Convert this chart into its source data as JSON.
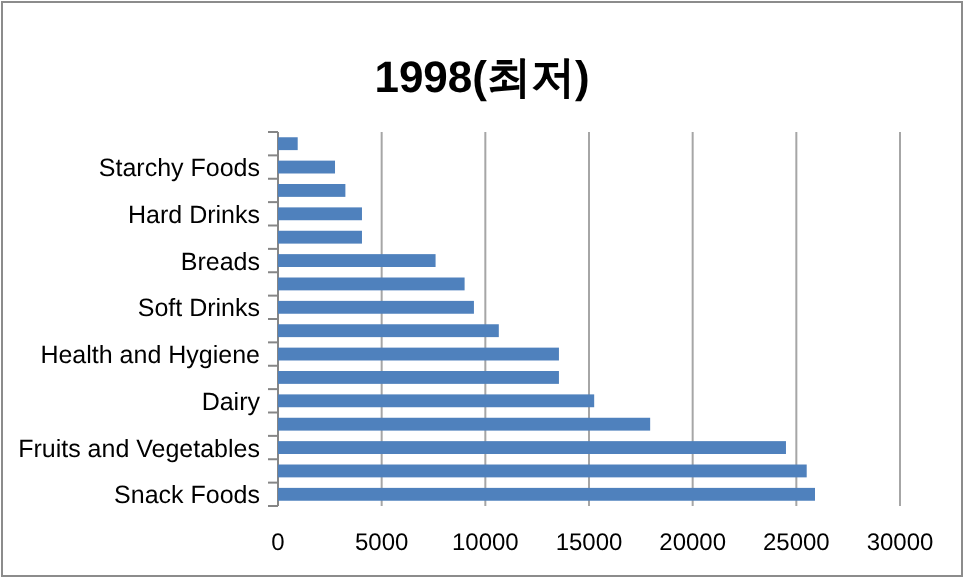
{
  "chart_data": {
    "type": "bar",
    "orientation": "horizontal",
    "title": "1998(최저)",
    "categories": [
      null,
      "Starchy Foods",
      null,
      "Hard Drinks",
      null,
      "Breads",
      null,
      "Soft Drinks",
      null,
      "Health and Hygiene",
      null,
      "Dairy",
      null,
      "Fruits and Vegetables",
      null,
      "Snack Foods"
    ],
    "values": [
      950,
      2750,
      3250,
      4050,
      4050,
      7600,
      9000,
      9450,
      10650,
      13550,
      13550,
      15250,
      17950,
      24500,
      25500,
      25900
    ],
    "color": "#4f81bd",
    "xlim": [
      0,
      30000
    ],
    "xticks": [
      0,
      5000,
      10000,
      15000,
      20000,
      25000,
      30000
    ],
    "grid": "x"
  }
}
